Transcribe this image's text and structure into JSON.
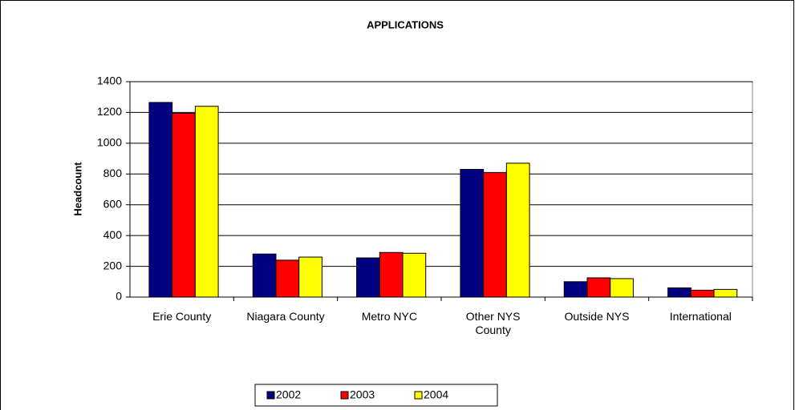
{
  "chart_data": {
    "type": "bar",
    "title": "APPLICATIONS",
    "y_label": "Headcount",
    "categories": [
      "Erie County",
      "Niagara County",
      "Metro NYC",
      "Other NYS County",
      "Outside NYS",
      "International"
    ],
    "series": [
      {
        "name": "2002",
        "color": "#000080",
        "values": [
          1265,
          280,
          255,
          830,
          100,
          60
        ]
      },
      {
        "name": "2003",
        "color": "#ff0000",
        "values": [
          1195,
          240,
          290,
          810,
          125,
          45
        ]
      },
      {
        "name": "2004",
        "color": "#ffff00",
        "values": [
          1240,
          260,
          285,
          870,
          120,
          50
        ]
      }
    ],
    "ylim": [
      0,
      1400
    ],
    "yticks": [
      0,
      200,
      400,
      600,
      800,
      1000,
      1200,
      1400
    ],
    "grid": true,
    "legend": "bottom"
  }
}
